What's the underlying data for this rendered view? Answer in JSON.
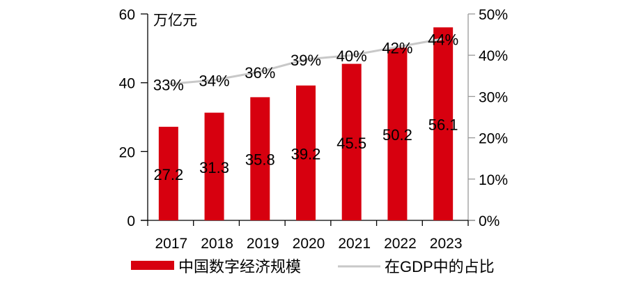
{
  "chart_data": {
    "type": "bar+line",
    "categories": [
      "2017",
      "2018",
      "2019",
      "2020",
      "2021",
      "2022",
      "2023"
    ],
    "series": [
      {
        "name": "中国数字经济规模",
        "type": "bar",
        "axis": "left",
        "color": "#d7000f",
        "values": [
          27.2,
          31.3,
          35.8,
          39.2,
          45.5,
          50.2,
          56.1
        ],
        "labels": [
          "27.2",
          "31.3",
          "35.8",
          "39.2",
          "45.5",
          "50.2",
          "56.1"
        ]
      },
      {
        "name": "在GDP中的占比",
        "type": "line",
        "axis": "right",
        "color": "#c8c8c8",
        "values": [
          33,
          34,
          36,
          39,
          40,
          42,
          44
        ],
        "labels": [
          "33%",
          "34%",
          "36%",
          "39%",
          "40%",
          "42%",
          "44%"
        ]
      }
    ],
    "left_axis": {
      "unit_label": "万亿元",
      "ylim": [
        0,
        60
      ],
      "ticks": [
        "0",
        "20",
        "40",
        "60"
      ]
    },
    "right_axis": {
      "ylim": [
        0,
        50
      ],
      "ticks": [
        "0%",
        "10%",
        "20%",
        "30%",
        "40%",
        "50%"
      ]
    },
    "grid": false,
    "legend": "bottom"
  }
}
